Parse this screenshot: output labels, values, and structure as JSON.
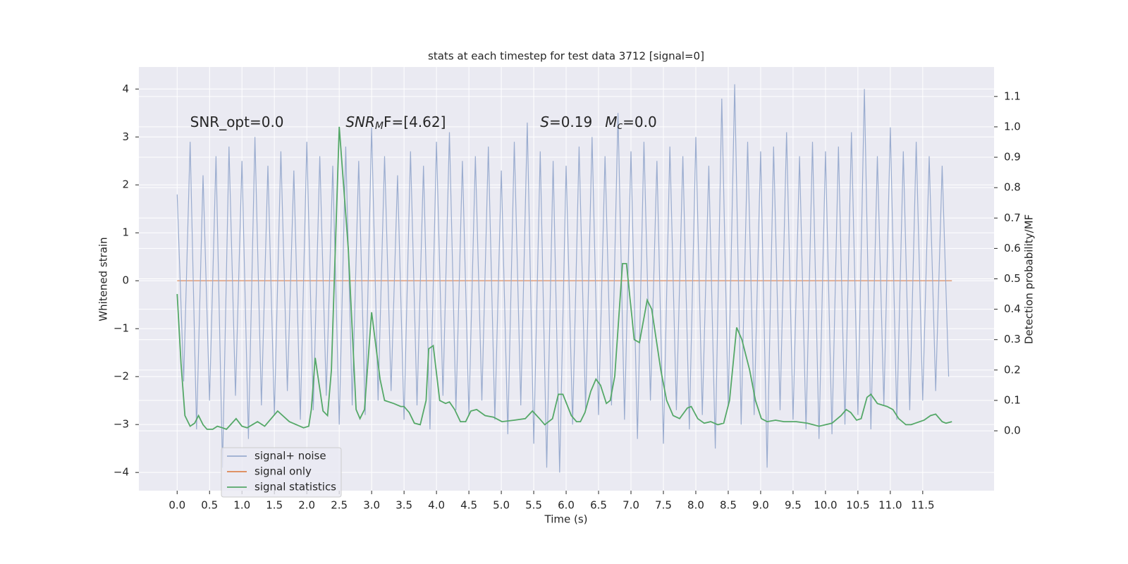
{
  "chart_data": {
    "type": "line",
    "title": "stats at each timestep for test data 3712 [signal=0]",
    "xlabel": "Time (s)",
    "ylabel": "Whitened strain",
    "y2label": "Detection probability/MF",
    "annotations": [
      {
        "parts": [
          "SNR_opt=0.0"
        ],
        "x": 0.2,
        "y": 3.3
      },
      {
        "parts": [
          "SNR",
          "M",
          "F=[4.62]"
        ],
        "x": 2.6,
        "y": 3.3
      },
      {
        "parts": [
          "S",
          "=0.19"
        ],
        "x": 5.6,
        "y": 3.3
      },
      {
        "parts": [
          "M",
          "c",
          "=0.0"
        ],
        "x": 6.6,
        "y": 3.3
      }
    ],
    "xlim": [
      -0.59,
      12.6
    ],
    "ylim": [
      -4.38,
      4.46
    ],
    "y2lim": [
      -0.197,
      1.197
    ],
    "xticks": [
      {
        "value": 0,
        "label": "0.0"
      },
      0.5,
      {
        "value": 1,
        "label": "1.0"
      },
      1.5,
      {
        "value": 2,
        "label": "2.0"
      },
      2.5,
      {
        "value": 3,
        "label": "3.0"
      },
      3.5,
      {
        "value": 4,
        "label": "4.0"
      },
      4.5,
      {
        "value": 5,
        "label": "5.0"
      },
      5.5,
      {
        "value": 6,
        "label": "6.0"
      },
      6.5,
      {
        "value": 7,
        "label": "7.0"
      },
      7.5,
      {
        "value": 8,
        "label": "8.0"
      },
      8.5,
      {
        "value": 9,
        "label": "9.0"
      },
      9.5,
      {
        "value": 10,
        "label": "10.0"
      },
      10.5,
      {
        "value": 11,
        "label": "11.0"
      },
      11.5
    ],
    "yticks": [
      {
        "value": -4,
        "label": "−4"
      },
      {
        "value": -3,
        "label": "−3"
      },
      {
        "value": -2,
        "label": "−2"
      },
      {
        "value": -1,
        "label": "−1"
      },
      0,
      1,
      2,
      3,
      4
    ],
    "y2ticks": [
      {
        "value": 0,
        "label": "0.0"
      },
      0.1,
      0.2,
      0.3,
      0.4,
      0.5,
      0.6,
      0.7,
      0.8,
      0.9,
      {
        "value": 1,
        "label": "1.0"
      },
      1.1
    ],
    "grid": true,
    "legend": "lower left",
    "series": [
      {
        "name": "signal+ noise",
        "color": "#9aaccf",
        "x": [
          0,
          0.1,
          0.2,
          0.3,
          0.4,
          0.5,
          0.6,
          0.7,
          0.8,
          0.9,
          1,
          1.1,
          1.2,
          1.3,
          1.4,
          1.5,
          1.6,
          1.7,
          1.8,
          1.9,
          2,
          2.1,
          2.2,
          2.3,
          2.4,
          2.5,
          2.6,
          2.7,
          2.8,
          2.9,
          3,
          3.1,
          3.2,
          3.3,
          3.4,
          3.5,
          3.6,
          3.7,
          3.8,
          3.9,
          4,
          4.1,
          4.2,
          4.3,
          4.4,
          4.5,
          4.6,
          4.7,
          4.8,
          4.9,
          5,
          5.1,
          5.2,
          5.3,
          5.4,
          5.5,
          5.6,
          5.7,
          5.8,
          5.9,
          6,
          6.1,
          6.2,
          6.3,
          6.4,
          6.5,
          6.6,
          6.7,
          6.8,
          6.9,
          7,
          7.1,
          7.2,
          7.3,
          7.4,
          7.5,
          7.6,
          7.7,
          7.8,
          7.9,
          8,
          8.1,
          8.2,
          8.3,
          8.4,
          8.5,
          8.6,
          8.7,
          8.8,
          8.9,
          9,
          9.1,
          9.2,
          9.3,
          9.4,
          9.5,
          9.6,
          9.7,
          9.8,
          9.9,
          10,
          10.1,
          10.2,
          10.3,
          10.4,
          10.5,
          10.6,
          10.7,
          10.8,
          10.9,
          11,
          11.1,
          11.2,
          11.3,
          11.4,
          11.5,
          11.6,
          11.7,
          11.8,
          11.9
        ],
        "values": [
          1.8,
          -2.1,
          2.9,
          -3.1,
          2.2,
          -2.5,
          2.6,
          -3.9,
          2.8,
          -2.4,
          2.5,
          -3.3,
          3.0,
          -2.6,
          2.4,
          -2.8,
          2.7,
          -2.3,
          2.3,
          -2.9,
          2.9,
          -2.7,
          2.6,
          -2.4,
          2.4,
          -3.0,
          2.8,
          -2.6,
          2.5,
          -2.8,
          3.2,
          -2.5,
          2.6,
          -2.3,
          2.2,
          -2.9,
          2.7,
          -2.6,
          2.4,
          -3.1,
          2.9,
          -2.4,
          3.1,
          -2.7,
          2.5,
          -2.8,
          2.6,
          -2.5,
          2.8,
          -2.9,
          2.3,
          -3.2,
          2.9,
          -2.6,
          3.3,
          -3.4,
          2.7,
          -3.9,
          2.5,
          -4.0,
          2.4,
          -3.0,
          2.8,
          -2.7,
          3.0,
          -2.8,
          2.6,
          -2.6,
          3.5,
          -2.9,
          2.7,
          -3.3,
          2.9,
          -2.5,
          2.5,
          -3.4,
          2.8,
          -2.7,
          2.6,
          -3.1,
          3.0,
          -2.8,
          2.4,
          -3.5,
          3.8,
          -2.6,
          4.1,
          -3.0,
          2.9,
          -2.8,
          2.7,
          -3.9,
          2.8,
          -2.7,
          3.1,
          -2.9,
          2.6,
          -3.1,
          2.9,
          -3.3,
          2.7,
          -3.2,
          2.8,
          -3.0,
          3.1,
          -2.8,
          4.0,
          -3.1,
          2.6,
          -2.6,
          3.2,
          -2.9,
          2.7,
          -2.7,
          2.9,
          -2.5,
          2.6,
          -2.3,
          2.4,
          -2.0
        ]
      },
      {
        "name": "signal only",
        "color": "#dd8452",
        "x": [
          0,
          11.95
        ],
        "values": [
          0,
          0
        ]
      },
      {
        "name": "signal statistics",
        "color": "#55a868",
        "axis": "y2",
        "x": [
          0,
          0.06,
          0.12,
          0.2,
          0.27,
          0.33,
          0.4,
          0.46,
          0.55,
          0.62,
          0.7,
          0.76,
          0.91,
          1.0,
          1.08,
          1.24,
          1.35,
          1.55,
          1.73,
          1.84,
          1.95,
          2.03,
          2.07,
          2.13,
          2.25,
          2.32,
          2.38,
          2.5,
          2.64,
          2.76,
          2.82,
          2.89,
          3.0,
          3.13,
          3.2,
          3.34,
          3.45,
          3.5,
          3.58,
          3.66,
          3.75,
          3.84,
          3.88,
          3.95,
          4.05,
          4.14,
          4.2,
          4.28,
          4.37,
          4.45,
          4.53,
          4.62,
          4.75,
          4.88,
          5.01,
          5.2,
          5.37,
          5.48,
          5.59,
          5.67,
          5.79,
          5.88,
          5.95,
          6.08,
          6.16,
          6.22,
          6.29,
          6.38,
          6.46,
          6.53,
          6.62,
          6.68,
          6.75,
          6.87,
          6.93,
          7.05,
          7.13,
          7.25,
          7.32,
          7.46,
          7.55,
          7.65,
          7.75,
          7.87,
          7.93,
          8.03,
          8.13,
          8.23,
          8.34,
          8.43,
          8.52,
          8.63,
          8.71,
          8.83,
          8.92,
          9.01,
          9.1,
          9.23,
          9.36,
          9.55,
          9.72,
          9.9,
          10.1,
          10.24,
          10.32,
          10.39,
          10.48,
          10.55,
          10.64,
          10.7,
          10.8,
          10.95,
          11.04,
          11.13,
          11.24,
          11.32,
          11.52,
          11.62,
          11.7,
          11.8,
          11.86,
          11.95
        ],
        "values": [
          0.45,
          0.22,
          0.05,
          0.015,
          0.025,
          0.05,
          0.02,
          0.005,
          0.005,
          0.015,
          0.01,
          0.005,
          0.04,
          0.015,
          0.01,
          0.03,
          0.015,
          0.065,
          0.03,
          0.02,
          0.01,
          0.015,
          0.07,
          0.24,
          0.065,
          0.05,
          0.2,
          1.0,
          0.6,
          0.07,
          0.04,
          0.07,
          0.39,
          0.17,
          0.1,
          0.09,
          0.08,
          0.08,
          0.06,
          0.025,
          0.02,
          0.1,
          0.27,
          0.28,
          0.1,
          0.09,
          0.095,
          0.07,
          0.03,
          0.03,
          0.065,
          0.07,
          0.05,
          0.045,
          0.03,
          0.035,
          0.04,
          0.065,
          0.04,
          0.02,
          0.04,
          0.12,
          0.12,
          0.05,
          0.03,
          0.03,
          0.06,
          0.13,
          0.17,
          0.15,
          0.09,
          0.1,
          0.18,
          0.55,
          0.55,
          0.3,
          0.29,
          0.43,
          0.4,
          0.2,
          0.1,
          0.05,
          0.04,
          0.075,
          0.08,
          0.04,
          0.025,
          0.03,
          0.02,
          0.025,
          0.1,
          0.34,
          0.3,
          0.2,
          0.1,
          0.04,
          0.03,
          0.035,
          0.03,
          0.03,
          0.025,
          0.015,
          0.025,
          0.05,
          0.07,
          0.06,
          0.035,
          0.04,
          0.11,
          0.12,
          0.09,
          0.08,
          0.07,
          0.04,
          0.02,
          0.02,
          0.035,
          0.05,
          0.055,
          0.03,
          0.025,
          0.03
        ]
      }
    ]
  }
}
